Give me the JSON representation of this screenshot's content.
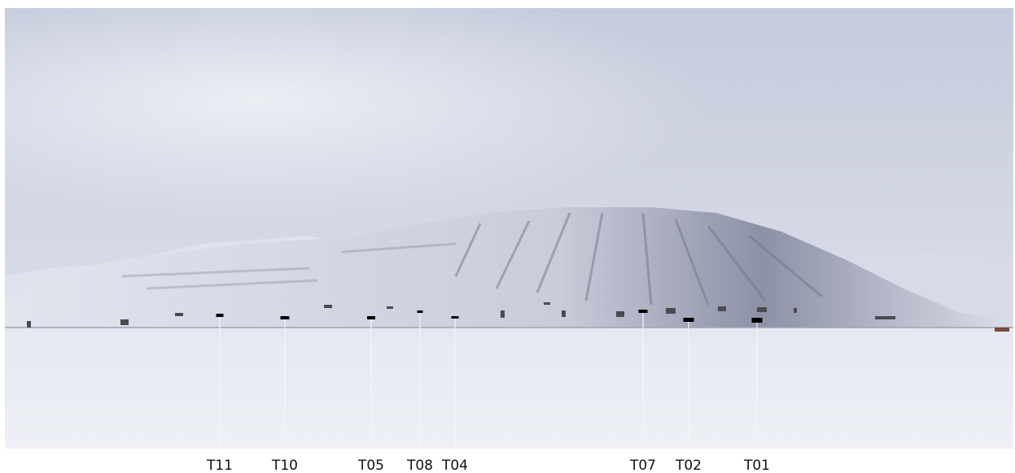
{
  "labels": [
    "T11",
    "T10",
    "T05",
    "T08",
    "T04",
    "T07",
    "T02",
    "T01"
  ]
}
